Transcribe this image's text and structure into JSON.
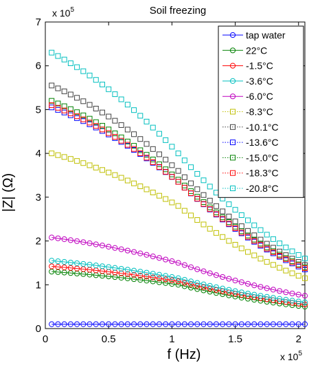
{
  "chart_data": {
    "type": "scatter",
    "title": "Soil freezing",
    "xlabel": "f (Hz)",
    "ylabel": "|Z| (Ω)",
    "x_multiplier": "x 10",
    "x_exponent": "5",
    "y_multiplier": "x 10",
    "y_exponent": "5",
    "xlim": [
      0,
      2.05
    ],
    "ylim": [
      0,
      7
    ],
    "xticks": [
      0,
      0.5,
      1,
      1.5,
      2
    ],
    "xtick_labels": [
      "0",
      "0.5",
      "1",
      "1.5",
      "2"
    ],
    "yticks": [
      0,
      1,
      2,
      3,
      4,
      5,
      6,
      7
    ],
    "ytick_labels": [
      "0",
      "1",
      "2",
      "3",
      "4",
      "5",
      "6",
      "7"
    ],
    "x_unit_scale": "x values in units of 10^5 Hz, y values in units of 10^5 Ω",
    "x": [
      0.05,
      0.1,
      0.15,
      0.2,
      0.25,
      0.3,
      0.35,
      0.4,
      0.45,
      0.5,
      0.55,
      0.6,
      0.65,
      0.7,
      0.75,
      0.8,
      0.85,
      0.9,
      0.95,
      1.0,
      1.05,
      1.1,
      1.15,
      1.2,
      1.25,
      1.3,
      1.35,
      1.4,
      1.45,
      1.5,
      1.55,
      1.6,
      1.65,
      1.7,
      1.75,
      1.8,
      1.85,
      1.9,
      1.95,
      2.0,
      2.05
    ],
    "legend_position": "top-right",
    "grid": false,
    "series": [
      {
        "name": "tap water",
        "color": "#0000ff",
        "marker": "circle",
        "line": "solid",
        "start": 0.1,
        "mid": 0.1,
        "end": 0.1
      },
      {
        "name": "22°C",
        "color": "#008000",
        "marker": "circle",
        "line": "solid",
        "start": 1.3,
        "mid": 1.0,
        "end": 0.5
      },
      {
        "name": "-1.5°C",
        "color": "#ff0000",
        "marker": "circle",
        "line": "solid",
        "start": 1.42,
        "mid": 1.08,
        "end": 0.55
      },
      {
        "name": "-3.6°C",
        "color": "#00bfbf",
        "marker": "circle",
        "line": "solid",
        "start": 1.55,
        "mid": 1.15,
        "end": 0.6
      },
      {
        "name": "-6.0°C",
        "color": "#bf00bf",
        "marker": "circle",
        "line": "solid",
        "start": 2.08,
        "mid": 1.5,
        "end": 0.75
      },
      {
        "name": "-8.3°C",
        "color": "#bfbf00",
        "marker": "square",
        "line": "dotted",
        "start": 4.0,
        "mid": 2.8,
        "end": 1.15
      },
      {
        "name": "-10.1°C",
        "color": "#404040",
        "marker": "square",
        "line": "dotted",
        "start": 5.55,
        "mid": 3.6,
        "end": 1.45
      },
      {
        "name": "-13.6°C",
        "color": "#0000ff",
        "marker": "square",
        "line": "dotted",
        "start": 5.05,
        "mid": 3.35,
        "end": 1.35
      },
      {
        "name": "-15.0°C",
        "color": "#008000",
        "marker": "square",
        "line": "dotted",
        "start": 5.2,
        "mid": 3.4,
        "end": 1.4
      },
      {
        "name": "-18.3°C",
        "color": "#ff0000",
        "marker": "square",
        "line": "dotted",
        "start": 5.1,
        "mid": 3.35,
        "end": 1.38
      },
      {
        "name": "-20.8°C",
        "color": "#00bfbf",
        "marker": "square",
        "line": "dotted",
        "start": 6.3,
        "mid": 4.0,
        "end": 1.6
      }
    ]
  }
}
